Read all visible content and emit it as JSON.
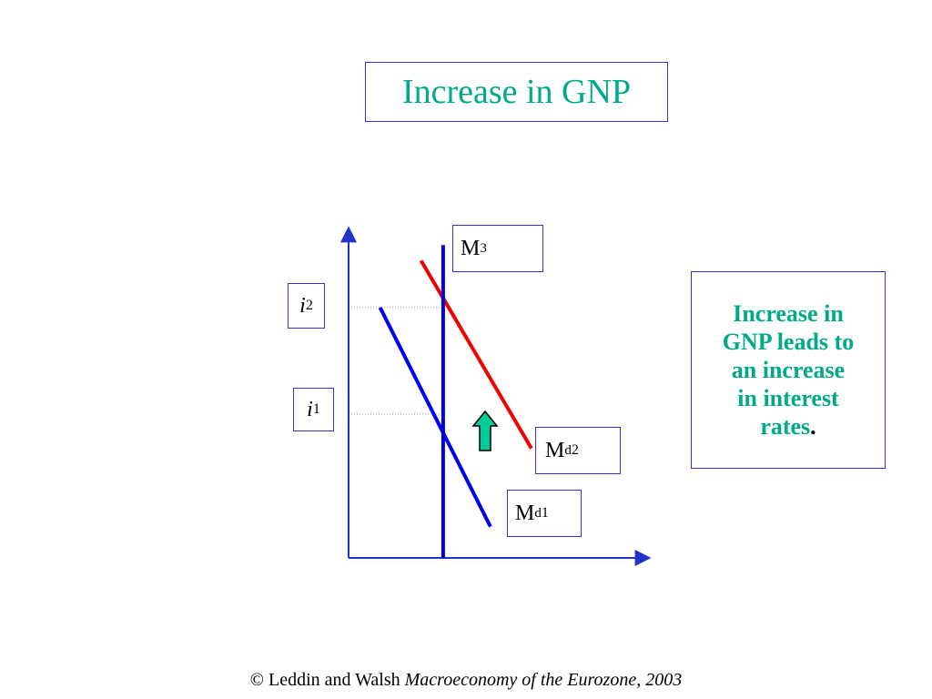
{
  "title": "Increase in GNP",
  "chart_data": {
    "type": "line",
    "series": [
      {
        "name": "Md1",
        "color": "#0000ee",
        "points": [
          [
            1,
            8
          ],
          [
            4.5,
            1
          ]
        ]
      },
      {
        "name": "Md2",
        "color": "#ee0000",
        "points": [
          [
            2.3,
            9.5
          ],
          [
            5.8,
            3.5
          ]
        ]
      },
      {
        "name": "M3",
        "color": "#0000dd",
        "points": [
          [
            3,
            0
          ],
          [
            3,
            10
          ]
        ]
      }
    ],
    "levels": {
      "i1": 4.6,
      "i2": 8.0
    },
    "labels": {
      "m_supply": {
        "base": "M",
        "sup": "3"
      },
      "md2": {
        "base": "M",
        "sup": "d",
        "sub": "2"
      },
      "md1": {
        "base": "M",
        "sup": "d",
        "sub": "1"
      },
      "i2": {
        "base": "i",
        "sub": "2"
      },
      "i1": {
        "base": "i",
        "sub": "1"
      }
    },
    "arrow": {
      "direction": "up",
      "color": "#00cc99"
    },
    "axis_color": "#2233cc",
    "xlim": [
      0,
      9.5
    ],
    "ylim": [
      0,
      10.5
    ]
  },
  "note": {
    "lines": [
      "Increase in",
      "GNP leads to",
      "an increase",
      "in interest",
      "rates"
    ],
    "end_punct": "."
  },
  "footer": {
    "prefix": "© Leddin and Walsh ",
    "italic": "Macroeconomy of the Eurozone, 2003"
  }
}
